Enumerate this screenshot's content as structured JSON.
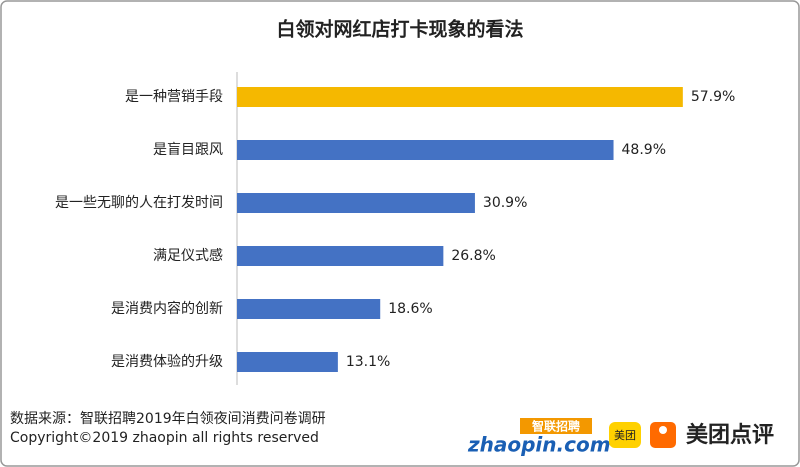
{
  "chart_data": {
    "type": "hbar",
    "title": "白领对网红店打卡现象的看法",
    "categories": [
      "是一种营销手段",
      "是盲目跟风",
      "是一些无聊的人在打发时间",
      "满足仪式感",
      "是消费内容的创新",
      "是消费体验的升级"
    ],
    "values": [
      57.9,
      48.9,
      30.9,
      26.8,
      18.6,
      13.1
    ],
    "value_labels": [
      "57.9%",
      "48.9%",
      "30.9%",
      "26.8%",
      "18.6%",
      "13.1%"
    ],
    "colors": [
      "#f5b800",
      "#4472c4",
      "#4472c4",
      "#4472c4",
      "#4472c4",
      "#4472c4"
    ]
  },
  "footer": {
    "source": "数据来源：智联招聘2019年白领夜间消费问卷调研",
    "copyright": "Copyright©2019 zhaopin all rights reserved"
  },
  "logos": {
    "zhaopin_cn": "智联招聘",
    "zhaopin_en": "zhaopin.com",
    "meituan_badge": "美团",
    "meituan_dianping": "美团点评"
  }
}
